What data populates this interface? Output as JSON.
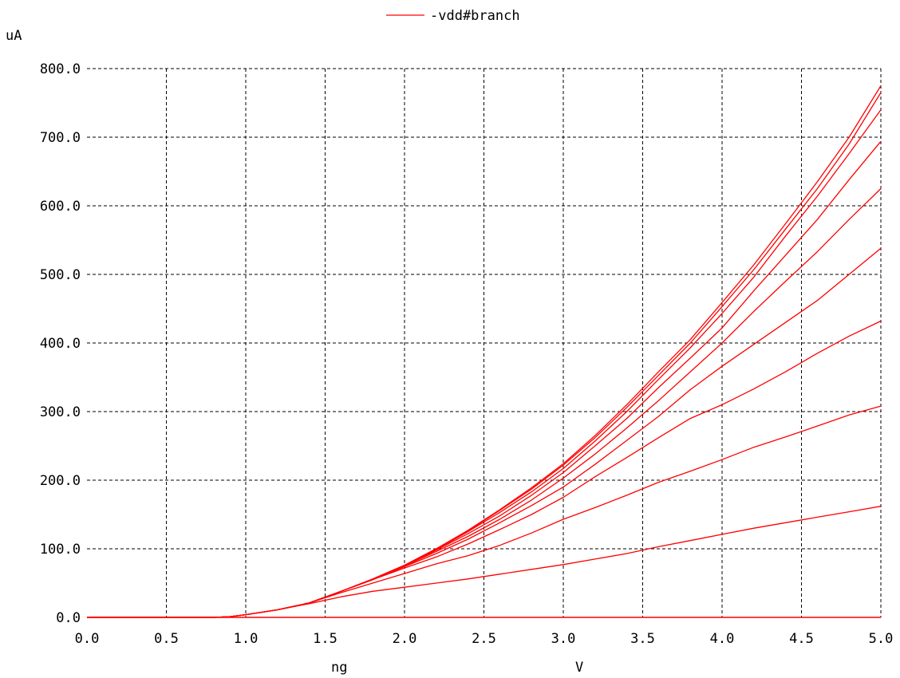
{
  "chart_data": {
    "type": "line",
    "ylabel": "uA",
    "xlabel": "V",
    "xlabel_left": "ng",
    "xlim": [
      0.0,
      5.0
    ],
    "ylim": [
      0.0,
      800.0
    ],
    "x_ticks": [
      "0.0",
      "0.5",
      "1.0",
      "1.5",
      "2.0",
      "2.5",
      "3.0",
      "3.5",
      "4.0",
      "4.5",
      "5.0"
    ],
    "y_ticks": [
      "0.0",
      "100.0",
      "200.0",
      "300.0",
      "400.0",
      "500.0",
      "600.0",
      "700.0",
      "800.0"
    ],
    "grid": true,
    "legend": {
      "position": "top-center",
      "entries": [
        "-vdd#branch"
      ]
    },
    "series_color": "#ff0000",
    "x": [
      0.0,
      0.5,
      0.8,
      0.9,
      1.0,
      1.2,
      1.4,
      1.6,
      1.8,
      2.0,
      2.2,
      2.4,
      2.6,
      2.8,
      3.0,
      3.2,
      3.4,
      3.6,
      3.8,
      4.0,
      4.2,
      4.4,
      4.6,
      4.8,
      5.0
    ],
    "series": [
      {
        "values": [
          0,
          0,
          0,
          1,
          4,
          11,
          20,
          30,
          38,
          44,
          50,
          56,
          63,
          70,
          77,
          85,
          93,
          103,
          112,
          121,
          130,
          138,
          146,
          154,
          162
        ]
      },
      {
        "values": [
          0,
          0,
          0,
          1,
          4,
          11,
          21,
          36,
          50,
          64,
          78,
          90,
          105,
          123,
          143,
          160,
          178,
          197,
          213,
          230,
          248,
          263,
          279,
          295,
          308
        ]
      },
      {
        "values": [
          0,
          0,
          0,
          1,
          4,
          11,
          21,
          38,
          55,
          72,
          88,
          107,
          128,
          150,
          175,
          205,
          233,
          262,
          290,
          310,
          333,
          358,
          385,
          410,
          432
        ]
      },
      {
        "values": [
          0,
          0,
          0,
          1,
          4,
          11,
          21,
          38,
          55,
          74,
          93,
          114,
          138,
          163,
          190,
          223,
          258,
          293,
          332,
          366,
          398,
          430,
          462,
          500,
          538
        ]
      },
      {
        "values": [
          0,
          0,
          0,
          1,
          4,
          11,
          21,
          38,
          55,
          75,
          96,
          118,
          143,
          171,
          203,
          238,
          276,
          316,
          358,
          400,
          446,
          490,
          533,
          580,
          625
        ]
      },
      {
        "values": [
          0,
          0,
          0,
          1,
          4,
          11,
          21,
          38,
          55,
          75,
          98,
          122,
          148,
          178,
          211,
          250,
          290,
          335,
          378,
          422,
          476,
          528,
          580,
          638,
          694
        ]
      },
      {
        "values": [
          0,
          0,
          0,
          1,
          4,
          11,
          21,
          38,
          55,
          75,
          99,
          125,
          153,
          183,
          217,
          257,
          300,
          347,
          393,
          443,
          496,
          556,
          614,
          676,
          740
        ]
      },
      {
        "values": [
          0,
          0,
          0,
          1,
          4,
          11,
          21,
          38,
          56,
          76,
          100,
          126,
          156,
          187,
          222,
          262,
          306,
          353,
          400,
          453,
          507,
          566,
          625,
          690,
          765
        ]
      },
      {
        "values": [
          0,
          0,
          0,
          1,
          4,
          11,
          21,
          38,
          56,
          76,
          100,
          127,
          157,
          189,
          224,
          265,
          310,
          358,
          405,
          459,
          514,
          574,
          635,
          700,
          775
        ]
      }
    ]
  }
}
